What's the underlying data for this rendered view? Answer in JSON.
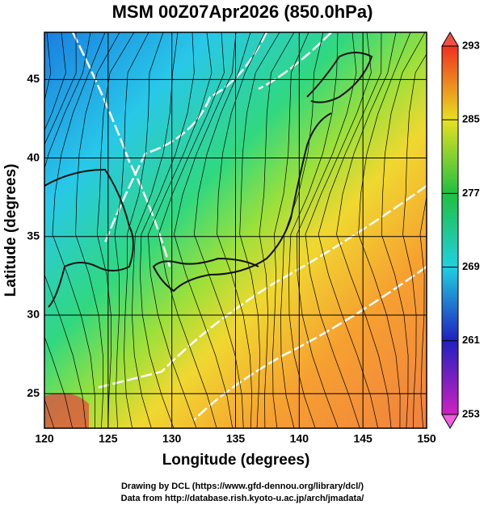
{
  "map": {
    "title": "MSM 00Z07Apr2026 (850.0hPa)",
    "xlabel": "Longitude (degrees)",
    "ylabel": "Latitude  (degrees)",
    "xlim": [
      120,
      150
    ],
    "ylim": [
      22.8,
      48
    ],
    "xticks": [
      120,
      125,
      130,
      135,
      140,
      145,
      150
    ],
    "yticks": [
      25,
      30,
      35,
      40,
      45
    ],
    "colorbar": {
      "lim": [
        253,
        293
      ],
      "ticks": [
        253,
        261,
        269,
        277,
        285,
        293
      ]
    },
    "credits": [
      "Drawing by DCL (https://www.gfd-dennou.org/library/dcl/)",
      "Data from http://database.rish.kyoto-u.ac.jp/arch/jmadata/"
    ]
  }
}
